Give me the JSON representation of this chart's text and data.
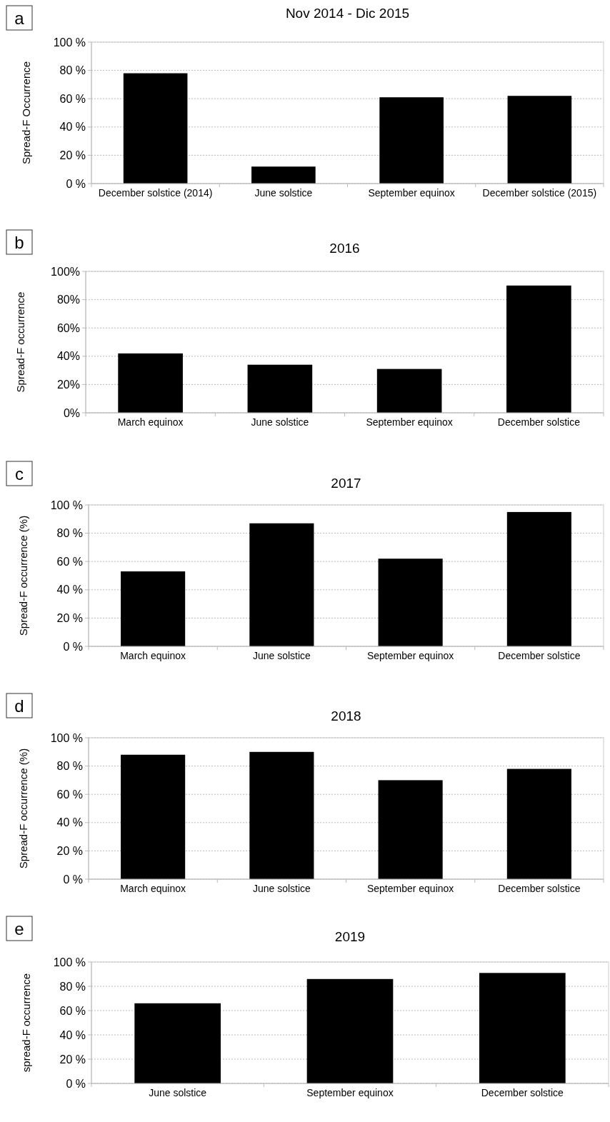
{
  "chart_data": [
    {
      "type": "bar",
      "title": "Nov 2014 - Dic 2015",
      "ylabel": "Spread-F Occurrence",
      "annotations": [
        "a"
      ],
      "categories": [
        "December solstice (2014)",
        "June solstice",
        "September equinox",
        "December solstice (2015)"
      ],
      "values": [
        78,
        12,
        61,
        62
      ],
      "color": "#000000",
      "ylim": [
        0,
        100
      ],
      "yticks": [
        {
          "value": 0,
          "label": "0 %"
        },
        {
          "value": 20,
          "label": "20 %"
        },
        {
          "value": 40,
          "label": "40 %"
        },
        {
          "value": 60,
          "label": "60 %"
        },
        {
          "value": 80,
          "label": "80 %"
        },
        {
          "value": 100,
          "label": "100 %"
        }
      ],
      "grid": "y"
    },
    {
      "type": "bar",
      "title": "2016",
      "ylabel": "Spread-F occurrence",
      "annotations": [
        "b"
      ],
      "categories": [
        "March equinox",
        "June solstice",
        "September equinox",
        "December solstice"
      ],
      "values": [
        42,
        34,
        31,
        90
      ],
      "color": "#000000",
      "ylim": [
        0,
        100
      ],
      "yticks": [
        {
          "value": 0,
          "label": "0%"
        },
        {
          "value": 20,
          "label": "20%"
        },
        {
          "value": 40,
          "label": "40%"
        },
        {
          "value": 60,
          "label": "60%"
        },
        {
          "value": 80,
          "label": "80%"
        },
        {
          "value": 100,
          "label": "100%"
        }
      ],
      "grid": "y"
    },
    {
      "type": "bar",
      "title": "2017",
      "ylabel": "Spread-F occurrence (%)",
      "annotations": [
        "c"
      ],
      "categories": [
        "March equinox",
        "June solstice",
        "September equinox",
        "December solstice"
      ],
      "values": [
        53,
        87,
        62,
        95
      ],
      "color": "#000000",
      "ylim": [
        0,
        100
      ],
      "yticks": [
        {
          "value": 0,
          "label": "0 %"
        },
        {
          "value": 20,
          "label": "20 %"
        },
        {
          "value": 40,
          "label": "40 %"
        },
        {
          "value": 60,
          "label": "60 %"
        },
        {
          "value": 80,
          "label": "80 %"
        },
        {
          "value": 100,
          "label": "100 %"
        }
      ],
      "grid": "y"
    },
    {
      "type": "bar",
      "title": "2018",
      "ylabel": "Spread-F occurrence (%)",
      "annotations": [
        "d"
      ],
      "categories": [
        "March equinox",
        "June solstice",
        "September equinox",
        "December solstice"
      ],
      "values": [
        88,
        90,
        70,
        78
      ],
      "color": "#000000",
      "ylim": [
        0,
        100
      ],
      "yticks": [
        {
          "value": 0,
          "label": "0 %"
        },
        {
          "value": 20,
          "label": "20 %"
        },
        {
          "value": 40,
          "label": "40 %"
        },
        {
          "value": 60,
          "label": "60 %"
        },
        {
          "value": 80,
          "label": "80 %"
        },
        {
          "value": 100,
          "label": "100 %"
        }
      ],
      "grid": "y"
    },
    {
      "type": "bar",
      "title": "2019",
      "ylabel": "spread-F occurrence",
      "annotations": [
        "e"
      ],
      "categories": [
        "June solstice",
        "September equinox",
        "December solstice"
      ],
      "values": [
        66,
        86,
        91
      ],
      "color": "#000000",
      "ylim": [
        0,
        100
      ],
      "yticks": [
        {
          "value": 0,
          "label": "0 %"
        },
        {
          "value": 20,
          "label": "20 %"
        },
        {
          "value": 40,
          "label": "40 %"
        },
        {
          "value": 60,
          "label": "60 %"
        },
        {
          "value": 80,
          "label": "80 %"
        },
        {
          "value": 100,
          "label": "100 %"
        }
      ],
      "grid": "y"
    }
  ]
}
